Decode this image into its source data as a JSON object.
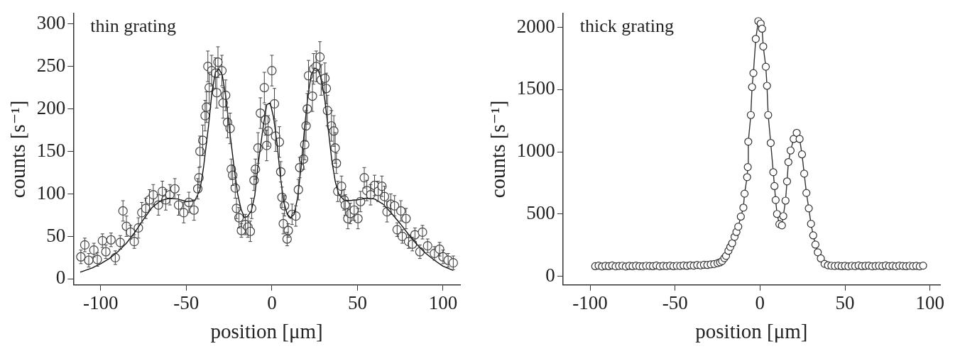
{
  "chart_data": [
    {
      "type": "scatter",
      "title": "thin grating",
      "xlabel": "position [μm]",
      "ylabel": "counts [s⁻¹]",
      "xlim": [
        -116,
        110
      ],
      "ylim": [
        -7,
        312
      ],
      "xticks": [
        -100,
        -50,
        0,
        50,
        100
      ],
      "yticks": [
        0,
        50,
        100,
        150,
        200,
        250,
        300
      ],
      "grid": false,
      "legend": false,
      "marker": "circle",
      "series": [
        {
          "color": "#444444",
          "x": [
            -111.6,
            -109.3,
            -107,
            -104,
            -102,
            -99,
            -97,
            -94,
            -91.5,
            -88.6,
            -87,
            -85,
            -82.6,
            -80.4,
            -78,
            -76,
            -73.7,
            -71.5,
            -69.3,
            -66.3,
            -64,
            -62,
            -59.6,
            -56.7,
            -54.5,
            -51.5,
            -48.5,
            -45.5,
            -43.3,
            -42.6,
            -42,
            -40.4,
            -39,
            -38.2,
            -37.4,
            -36.6,
            -35.2,
            -33,
            -32.2,
            -31.5,
            -29.2,
            -28.5,
            -27,
            -25.9,
            -24.4,
            -23.7,
            -22.9,
            -21.4,
            -20.7,
            -19.2,
            -17.8,
            -15.5,
            -14,
            -12.6,
            -11.8,
            -10.4,
            -9.6,
            -8.1,
            -6.7,
            -4.4,
            -3.7,
            -3,
            -2.2,
            0,
            1.5,
            2.2,
            4.4,
            5.2,
            5.9,
            6.7,
            7.4,
            8.9,
            9.6,
            11.8,
            14,
            15.5,
            16.3,
            18.5,
            19.2,
            20,
            20.7,
            21.4,
            23.7,
            24.4,
            25.9,
            28.1,
            28.8,
            31,
            31.8,
            32.5,
            34.8,
            36.2,
            37,
            37.7,
            38.5,
            40.7,
            42.2,
            42.9,
            44.4,
            45.8,
            48.1,
            50.3,
            51.8,
            54,
            55.5,
            57.7,
            60,
            62.1,
            64.3,
            65.8,
            67.3,
            69.5,
            71.7,
            73.2,
            75.4,
            76.2,
            78.4,
            79.9,
            82.1,
            83.6,
            86.5,
            88,
            91,
            95,
            98,
            100,
            103,
            106
          ],
          "values": [
            26,
            40,
            22,
            34,
            23,
            45,
            32,
            46,
            25,
            43,
            80,
            62,
            55,
            44,
            60,
            78,
            83,
            93,
            99,
            87,
            103,
            93,
            99,
            106,
            87,
            78,
            90,
            81,
            106,
            119,
            150,
            163,
            192,
            202,
            250,
            225,
            245,
            242,
            219,
            255,
            245,
            207,
            216,
            184,
            177,
            129,
            122,
            107,
            83,
            72,
            57,
            64,
            61,
            56,
            83,
            116,
            129,
            154,
            195,
            225,
            187,
            157,
            174,
            245,
            206,
            168,
            161,
            126,
            96,
            65,
            86,
            47,
            57,
            76,
            74,
            105,
            131,
            141,
            158,
            180,
            200,
            239,
            215,
            247,
            250,
            261,
            234,
            236,
            224,
            198,
            180,
            174,
            154,
            136,
            103,
            109,
            93,
            87,
            71,
            77,
            81,
            71,
            91,
            119,
            104,
            99,
            110,
            103,
            109,
            97,
            79,
            88,
            86,
            58,
            80,
            50,
            71,
            44,
            41,
            52,
            32,
            55,
            39,
            30,
            35,
            26,
            22,
            19
          ],
          "errors": [
            8,
            8,
            8,
            8,
            8,
            8,
            8,
            8,
            8,
            8,
            12,
            12,
            8,
            8,
            12,
            12,
            12,
            12,
            12,
            12,
            12,
            12,
            12,
            12,
            12,
            12,
            12,
            12,
            12,
            12,
            18,
            18,
            18,
            18,
            18,
            18,
            18,
            18,
            18,
            18,
            18,
            18,
            18,
            18,
            18,
            12,
            12,
            12,
            12,
            12,
            8,
            12,
            12,
            12,
            12,
            12,
            12,
            18,
            18,
            18,
            18,
            18,
            18,
            18,
            18,
            18,
            18,
            12,
            12,
            12,
            12,
            8,
            8,
            12,
            12,
            12,
            12,
            12,
            18,
            18,
            18,
            18,
            18,
            18,
            18,
            18,
            18,
            18,
            18,
            18,
            18,
            18,
            18,
            12,
            12,
            12,
            12,
            12,
            12,
            12,
            12,
            12,
            12,
            12,
            12,
            12,
            12,
            12,
            12,
            12,
            12,
            12,
            12,
            8,
            12,
            8,
            12,
            8,
            8,
            8,
            8,
            8,
            8,
            8,
            8,
            8,
            8,
            8
          ]
        },
        {
          "type": "line",
          "color": "#111111",
          "marker": "none",
          "x": [
            -112,
            -105,
            -100,
            -95,
            -90,
            -85,
            -80,
            -75,
            -70,
            -65,
            -60,
            -55,
            -50,
            -45,
            -42,
            -40,
            -37,
            -35,
            -33,
            -31,
            -29,
            -27,
            -25,
            -22,
            -20,
            -18,
            -16,
            -14,
            -12,
            -10,
            -8,
            -5,
            -3,
            -1,
            1,
            3,
            5,
            7,
            9,
            11,
            13,
            15,
            17,
            19,
            21,
            23,
            25,
            27,
            29,
            31,
            33,
            35,
            37,
            39,
            42,
            45,
            50,
            55,
            60,
            65,
            70,
            75,
            80,
            85,
            90,
            95,
            100,
            106
          ],
          "values": [
            8,
            13,
            18,
            24,
            32,
            42,
            55,
            70,
            84,
            92,
            95,
            94,
            91,
            92,
            105,
            130,
            180,
            220,
            243,
            247,
            240,
            215,
            180,
            130,
            100,
            82,
            72,
            74,
            80,
            98,
            135,
            180,
            205,
            207,
            190,
            160,
            120,
            90,
            76,
            72,
            76,
            95,
            130,
            175,
            215,
            240,
            248,
            246,
            235,
            210,
            175,
            140,
            115,
            100,
            93,
            92,
            93,
            95,
            94,
            88,
            77,
            65,
            52,
            40,
            30,
            22,
            15,
            10
          ]
        }
      ]
    },
    {
      "type": "line",
      "title": "thick grating",
      "xlabel": "position [μm]",
      "ylabel": "counts [s⁻¹]",
      "xlim": [
        -116,
        106
      ],
      "ylim": [
        -70,
        2110
      ],
      "xticks": [
        -100,
        -50,
        0,
        50,
        100
      ],
      "yticks": [
        0,
        500,
        1000,
        1500,
        2000
      ],
      "grid": false,
      "legend": false,
      "marker": "circle",
      "line_style": "solid",
      "series": [
        {
          "color": "#333333",
          "x": [
            -97,
            -95,
            -93,
            -91,
            -89,
            -87,
            -85,
            -83,
            -81,
            -79,
            -77,
            -75,
            -73,
            -71,
            -69,
            -67,
            -65,
            -63,
            -61,
            -59,
            -57,
            -55,
            -53,
            -51,
            -49,
            -47,
            -45,
            -43,
            -41,
            -39,
            -37,
            -35,
            -33,
            -31,
            -29,
            -27,
            -25,
            -23.5,
            -22.3,
            -21,
            -20,
            -18.6,
            -17.5,
            -16.4,
            -15,
            -13.9,
            -12.8,
            -11.3,
            -9.8,
            -9.1,
            -7.6,
            -7.2,
            -6.9,
            -5.4,
            -4.7,
            -3.9,
            -2.5,
            -1,
            0.4,
            1.2,
            1.9,
            3.4,
            4.1,
            4.8,
            6.3,
            7.8,
            8.5,
            9.2,
            10,
            11.4,
            12.9,
            13.7,
            15,
            15.9,
            16.7,
            18,
            19.8,
            21.6,
            23.3,
            24.7,
            26,
            27.3,
            28.7,
            30,
            31.3,
            32.6,
            34,
            35.8,
            38,
            40,
            42,
            44,
            46,
            48,
            50,
            52,
            54,
            56,
            58,
            60,
            62,
            64,
            66,
            68,
            70,
            72,
            74,
            76,
            78,
            80,
            82,
            84,
            86,
            88,
            90,
            92,
            94,
            96
          ],
          "values": [
            80,
            85,
            78,
            83,
            80,
            86,
            79,
            82,
            84,
            78,
            83,
            80,
            85,
            81,
            79,
            84,
            82,
            80,
            86,
            79,
            83,
            81,
            85,
            80,
            84,
            82,
            86,
            83,
            88,
            85,
            90,
            87,
            92,
            90,
            95,
            98,
            105,
            112,
            122,
            145,
            163,
            204,
            235,
            265,
            316,
            355,
            398,
            479,
            551,
            663,
            796,
            877,
            1081,
            1295,
            1520,
            1632,
            1907,
            2050,
            2030,
            1989,
            1846,
            1683,
            1530,
            1295,
            1071,
            836,
            724,
            612,
            500,
            418,
            408,
            483,
            607,
            762,
            917,
            1010,
            1103,
            1152,
            1103,
            979,
            824,
            669,
            545,
            421,
            328,
            254,
            192,
            143,
            99,
            88,
            84,
            82,
            85,
            80,
            83,
            79,
            84,
            81,
            86,
            80,
            83,
            85,
            79,
            82,
            84,
            80,
            86,
            81,
            83,
            79,
            85,
            82,
            80,
            84,
            81,
            83,
            79,
            85
          ]
        }
      ]
    }
  ]
}
